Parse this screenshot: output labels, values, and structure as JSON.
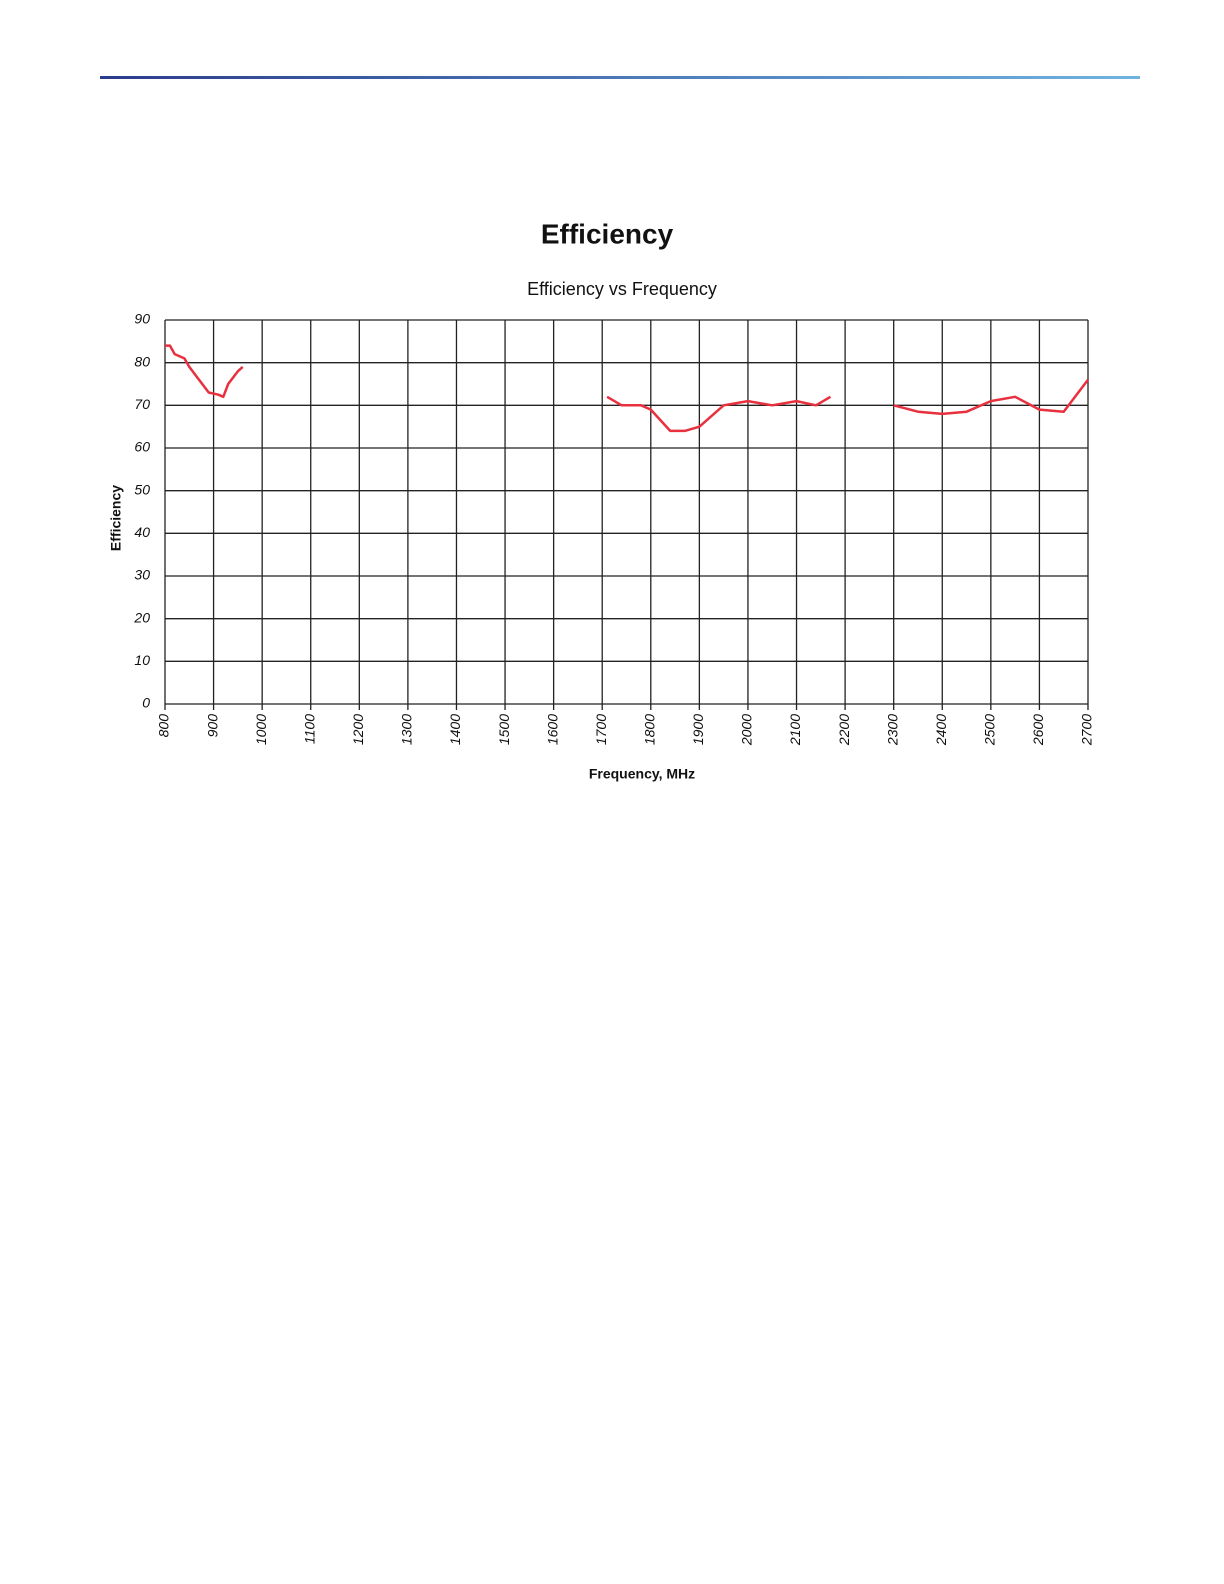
{
  "chart_data": {
    "type": "line",
    "title": "Efficiency",
    "subtitle": "Efficiency vs Frequency",
    "x_label": "Frequency, MHz",
    "y_label": "Efficiency",
    "color": "#e8303e",
    "grid": true,
    "x": [
      800,
      810,
      820,
      840,
      850,
      870,
      890,
      910,
      920,
      930,
      950,
      960,
      1300,
      1710,
      1740,
      1780,
      1800,
      1840,
      1870,
      1900,
      1950,
      2000,
      2050,
      2100,
      2140,
      2170,
      2230,
      2300,
      2350,
      2400,
      2450,
      2500,
      2550,
      2600,
      2650,
      2700
    ],
    "values": [
      84,
      84,
      82,
      81,
      79,
      76,
      73,
      72.5,
      72,
      75,
      78,
      79,
      null,
      72,
      70,
      70,
      69,
      64,
      64,
      65,
      70,
      71,
      70,
      71,
      70,
      72,
      null,
      70,
      68.5,
      68,
      68.5,
      71,
      72,
      69,
      68.5,
      76
    ],
    "xlim": [
      800,
      2700
    ],
    "ylim": [
      0,
      90
    ],
    "xticks": [
      800,
      900,
      1000,
      1100,
      1200,
      1300,
      1400,
      1500,
      1600,
      1700,
      1800,
      1900,
      2000,
      2100,
      2200,
      2300,
      2400,
      2500,
      2600,
      2700
    ],
    "yticks": [
      0,
      10,
      20,
      30,
      40,
      50,
      60,
      70,
      80,
      90
    ]
  }
}
